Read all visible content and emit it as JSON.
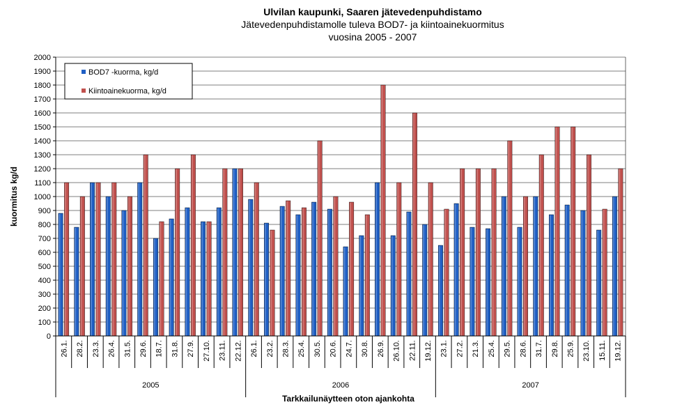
{
  "chart_data": {
    "type": "bar",
    "title": "Ulvilan kaupunki, Saaren jätevedenpuhdistamo",
    "subtitle_line1": "Jätevedenpuhdistamolle tuleva BOD7- ja kiintoainekuormitus",
    "subtitle_line2": "vuosina 2005 - 2007",
    "xlabel": "Tarkkailunäytteen  oton ajankohta",
    "ylabel": "kuormitus kg/d",
    "ylim": [
      0,
      2000
    ],
    "ytick_step": 100,
    "grid": true,
    "legend_position": "top-left",
    "categories": [
      "26.1.",
      "28.2.",
      "23.3.",
      "26.4.",
      "31.5.",
      "29.6.",
      "18.7.",
      "31.8.",
      "27.9.",
      "27.10.",
      "23.11.",
      "22.12.",
      "26.1.",
      "23.2.",
      "28.3.",
      "25.4.",
      "30.5.",
      "20.6.",
      "24.7.",
      "30.8.",
      "26.9.",
      "26.10.",
      "22.11.",
      "19.12.",
      "23.1.",
      "27.2.",
      "21.3.",
      "25.4.",
      "29.5.",
      "28.6.",
      "31.7.",
      "29.8.",
      "25.9.",
      "23.10.",
      "15.11.",
      "19.12."
    ],
    "groups": [
      {
        "label": "2005",
        "count": 12
      },
      {
        "label": "2006",
        "count": 12
      },
      {
        "label": "2007",
        "count": 12
      }
    ],
    "series": [
      {
        "name": "BOD7 -kuorma, kg/d",
        "color": "#1f5fc4",
        "values": [
          880,
          780,
          1100,
          1000,
          900,
          1100,
          700,
          840,
          920,
          820,
          920,
          1200,
          980,
          810,
          930,
          870,
          960,
          910,
          640,
          720,
          1100,
          720,
          890,
          800,
          650,
          950,
          780,
          770,
          1000,
          780,
          1000,
          870,
          940,
          900,
          760,
          1000
        ]
      },
      {
        "name": "Kiintoainekuorma, kg/d",
        "color": "#c0504d",
        "values": [
          1100,
          1000,
          1100,
          1100,
          1000,
          1300,
          820,
          1200,
          1300,
          820,
          1200,
          1200,
          1100,
          760,
          970,
          920,
          1400,
          1000,
          960,
          870,
          1800,
          1100,
          1600,
          1100,
          910,
          1200,
          1200,
          1200,
          1400,
          1000,
          1300,
          1500,
          1500,
          1300,
          910,
          1200
        ]
      }
    ]
  }
}
